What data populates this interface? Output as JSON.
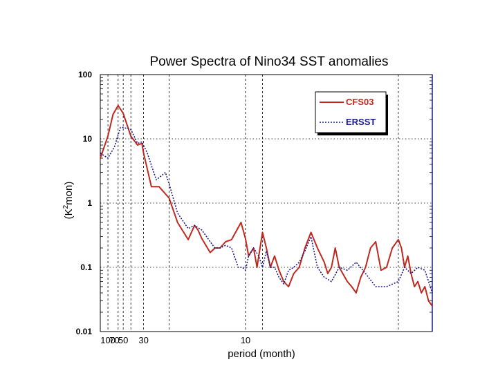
{
  "chart_data": {
    "type": "line",
    "title": "Power Spectra of Nino34 SST anomalies",
    "xlabel": "period (month)",
    "ylabel_parts": [
      "(K",
      "2",
      "mon)"
    ],
    "y_scale": "log",
    "ylim": [
      0.01,
      100
    ],
    "x_scale": "inverse-period (frequency)",
    "xlim_period": [
      200,
      4.5
    ],
    "y_ticks": [
      {
        "value": 100,
        "label": "100"
      },
      {
        "value": 10,
        "label": "10"
      },
      {
        "value": 1,
        "label": "1"
      },
      {
        "value": 0.1,
        "label": "0.1"
      },
      {
        "value": 0.01,
        "label": "0.01"
      }
    ],
    "x_ticks": [
      {
        "value": 100,
        "label": "100"
      },
      {
        "value": 70,
        "label": "70"
      },
      {
        "value": 50,
        "label": "50"
      },
      {
        "value": 30,
        "label": "30"
      },
      {
        "value": 10,
        "label": "10"
      }
    ],
    "x_gridlines_period": [
      100,
      60,
      50,
      40,
      30,
      20,
      10,
      9,
      5
    ],
    "legend": {
      "position": "top-right",
      "entries": [
        "CFS03",
        "ERSST"
      ]
    },
    "series": [
      {
        "name": "CFS03",
        "color": "#c0281e",
        "style": "solid",
        "period": [
          200,
          100,
          75,
          60,
          50,
          40,
          34,
          31,
          30,
          26,
          23,
          20,
          18,
          16,
          15,
          14.5,
          14,
          13,
          12.5,
          12,
          11.5,
          11,
          10.3,
          10,
          9.8,
          9.5,
          9.3,
          9,
          8.8,
          8.6,
          8.4,
          8.2,
          8,
          7.8,
          7.6,
          7.4,
          7.2,
          7,
          6.8,
          6.6,
          6.5,
          6.4,
          6.3,
          6.2,
          6,
          5.9,
          5.8,
          5.7,
          5.6,
          5.5,
          5.4,
          5.3,
          5.2,
          5.1,
          5,
          4.95,
          4.9,
          4.85,
          4.8,
          4.75,
          4.7,
          4.65,
          4.6,
          4.55,
          4.5
        ],
        "values": [
          5,
          11,
          24,
          33,
          25,
          11,
          8,
          8.5,
          6,
          1.8,
          1.8,
          1.2,
          0.5,
          0.27,
          0.45,
          0.38,
          0.28,
          0.17,
          0.2,
          0.2,
          0.25,
          0.27,
          0.5,
          0.28,
          0.15,
          0.2,
          0.1,
          0.35,
          0.2,
          0.1,
          0.15,
          0.09,
          0.06,
          0.05,
          0.08,
          0.1,
          0.2,
          0.35,
          0.2,
          0.12,
          0.08,
          0.1,
          0.2,
          0.1,
          0.06,
          0.05,
          0.04,
          0.07,
          0.1,
          0.2,
          0.25,
          0.09,
          0.1,
          0.2,
          0.27,
          0.2,
          0.1,
          0.15,
          0.08,
          0.05,
          0.06,
          0.04,
          0.05,
          0.03,
          0.025
        ]
      },
      {
        "name": "ERSST",
        "color": "#1a1a8c",
        "style": "dotted",
        "period": [
          200,
          100,
          70,
          55,
          50,
          40,
          34,
          31,
          28,
          24,
          21,
          20,
          18,
          16,
          15,
          14,
          13,
          12.5,
          12,
          11.5,
          11,
          10.5,
          10.2,
          10,
          9.8,
          9.5,
          9.2,
          9,
          8.8,
          8.6,
          8.4,
          8.2,
          8,
          7.8,
          7.6,
          7.4,
          7.2,
          7,
          6.8,
          6.6,
          6.4,
          6.2,
          6,
          5.8,
          5.6,
          5.4,
          5.2,
          5,
          4.9,
          4.8,
          4.7,
          4.6,
          4.5
        ],
        "values": [
          6,
          5,
          7.5,
          15,
          15,
          14,
          8.5,
          9,
          6,
          2.3,
          3,
          2,
          0.7,
          0.4,
          0.45,
          0.38,
          0.25,
          0.2,
          0.2,
          0.22,
          0.2,
          0.1,
          0.1,
          0.09,
          0.15,
          0.2,
          0.15,
          0.1,
          0.18,
          0.1,
          0.1,
          0.07,
          0.055,
          0.09,
          0.1,
          0.12,
          0.18,
          0.3,
          0.1,
          0.07,
          0.06,
          0.1,
          0.09,
          0.12,
          0.08,
          0.05,
          0.05,
          0.06,
          0.1,
          0.08,
          0.1,
          0.09,
          0.04
        ]
      }
    ]
  }
}
